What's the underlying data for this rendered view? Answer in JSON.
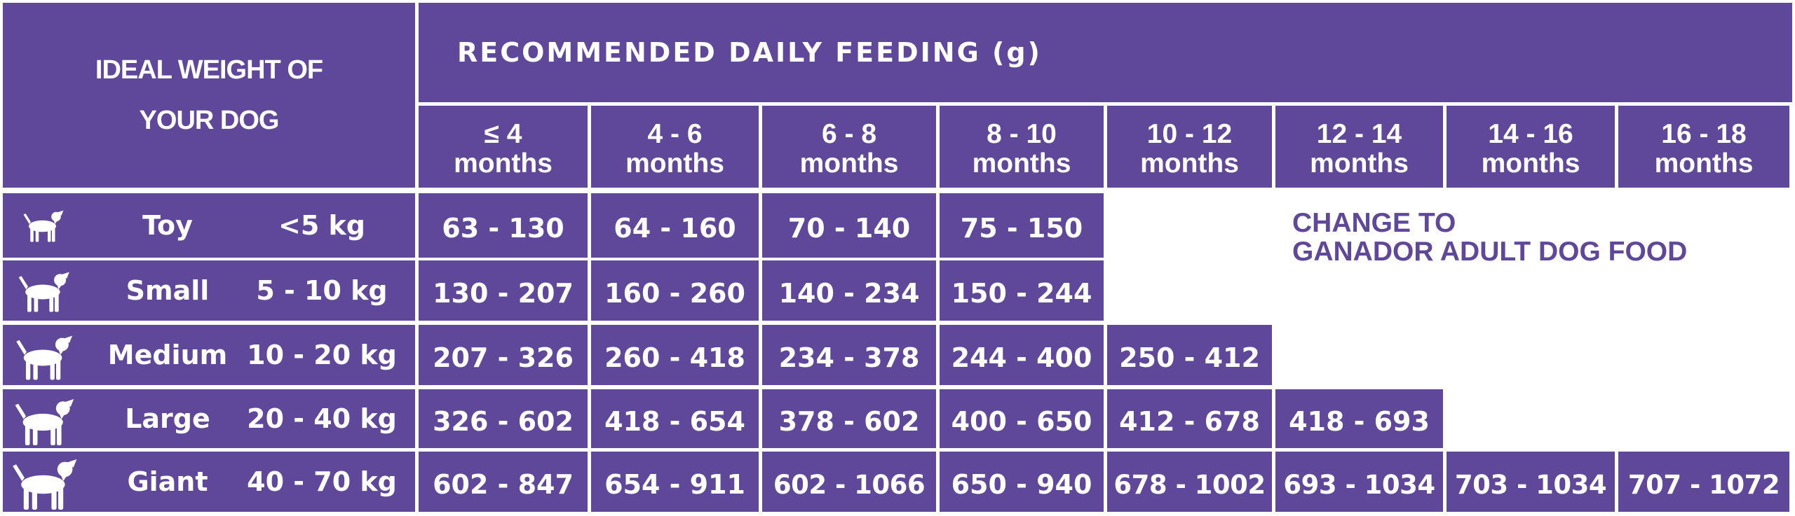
{
  "header": {
    "weight_line1": "IDEAL WEIGHT OF",
    "weight_line2": "YOUR DOG",
    "feeding": "RECOMMENDED  DAILY  FEEDING  (g)"
  },
  "ages": [
    {
      "top": "≤ 4",
      "unit": "months"
    },
    {
      "top": "4 - 6",
      "unit": "months"
    },
    {
      "top": "6 - 8",
      "unit": "months"
    },
    {
      "top": "8 - 10",
      "unit": "months"
    },
    {
      "top": "10 - 12",
      "unit": "months"
    },
    {
      "top": "12 - 14",
      "unit": "months"
    },
    {
      "top": "14 - 16",
      "unit": "months"
    },
    {
      "top": "16 - 18",
      "unit": "months"
    }
  ],
  "rows": [
    {
      "size": "Toy",
      "weight": "<5 kg",
      "icon": "toy-dog-icon",
      "values": [
        "63 - 130",
        "64 - 160",
        "70 - 140",
        "75 - 150"
      ]
    },
    {
      "size": "Small",
      "weight": "5 - 10 kg",
      "icon": "small-dog-icon",
      "values": [
        "130 - 207",
        "160 - 260",
        "140 - 234",
        "150 - 244"
      ]
    },
    {
      "size": "Medium",
      "weight": "10 - 20 kg",
      "icon": "medium-dog-icon",
      "values": [
        "207 - 326",
        "260 - 418",
        "234 - 378",
        "244 - 400",
        "250 - 412"
      ]
    },
    {
      "size": "Large",
      "weight": "20 - 40 kg",
      "icon": "large-dog-icon",
      "values": [
        "326 - 602",
        "418 - 654",
        "378 - 602",
        "400 - 650",
        "412 - 678",
        "418 - 693"
      ]
    },
    {
      "size": "Giant",
      "weight": "40 - 70 kg",
      "icon": "giant-dog-icon",
      "values": [
        "602 - 847",
        "654 - 911",
        "602 - 1066",
        "650 - 940",
        "678 - 1002",
        "693 - 1034",
        "703 - 1034",
        "707 - 1072"
      ]
    }
  ],
  "note": {
    "line1": "CHANGE TO",
    "line2": "GANADOR ADULT DOG FOOD"
  },
  "colors": {
    "accent": "#5f4899",
    "background": "#ffffff"
  }
}
